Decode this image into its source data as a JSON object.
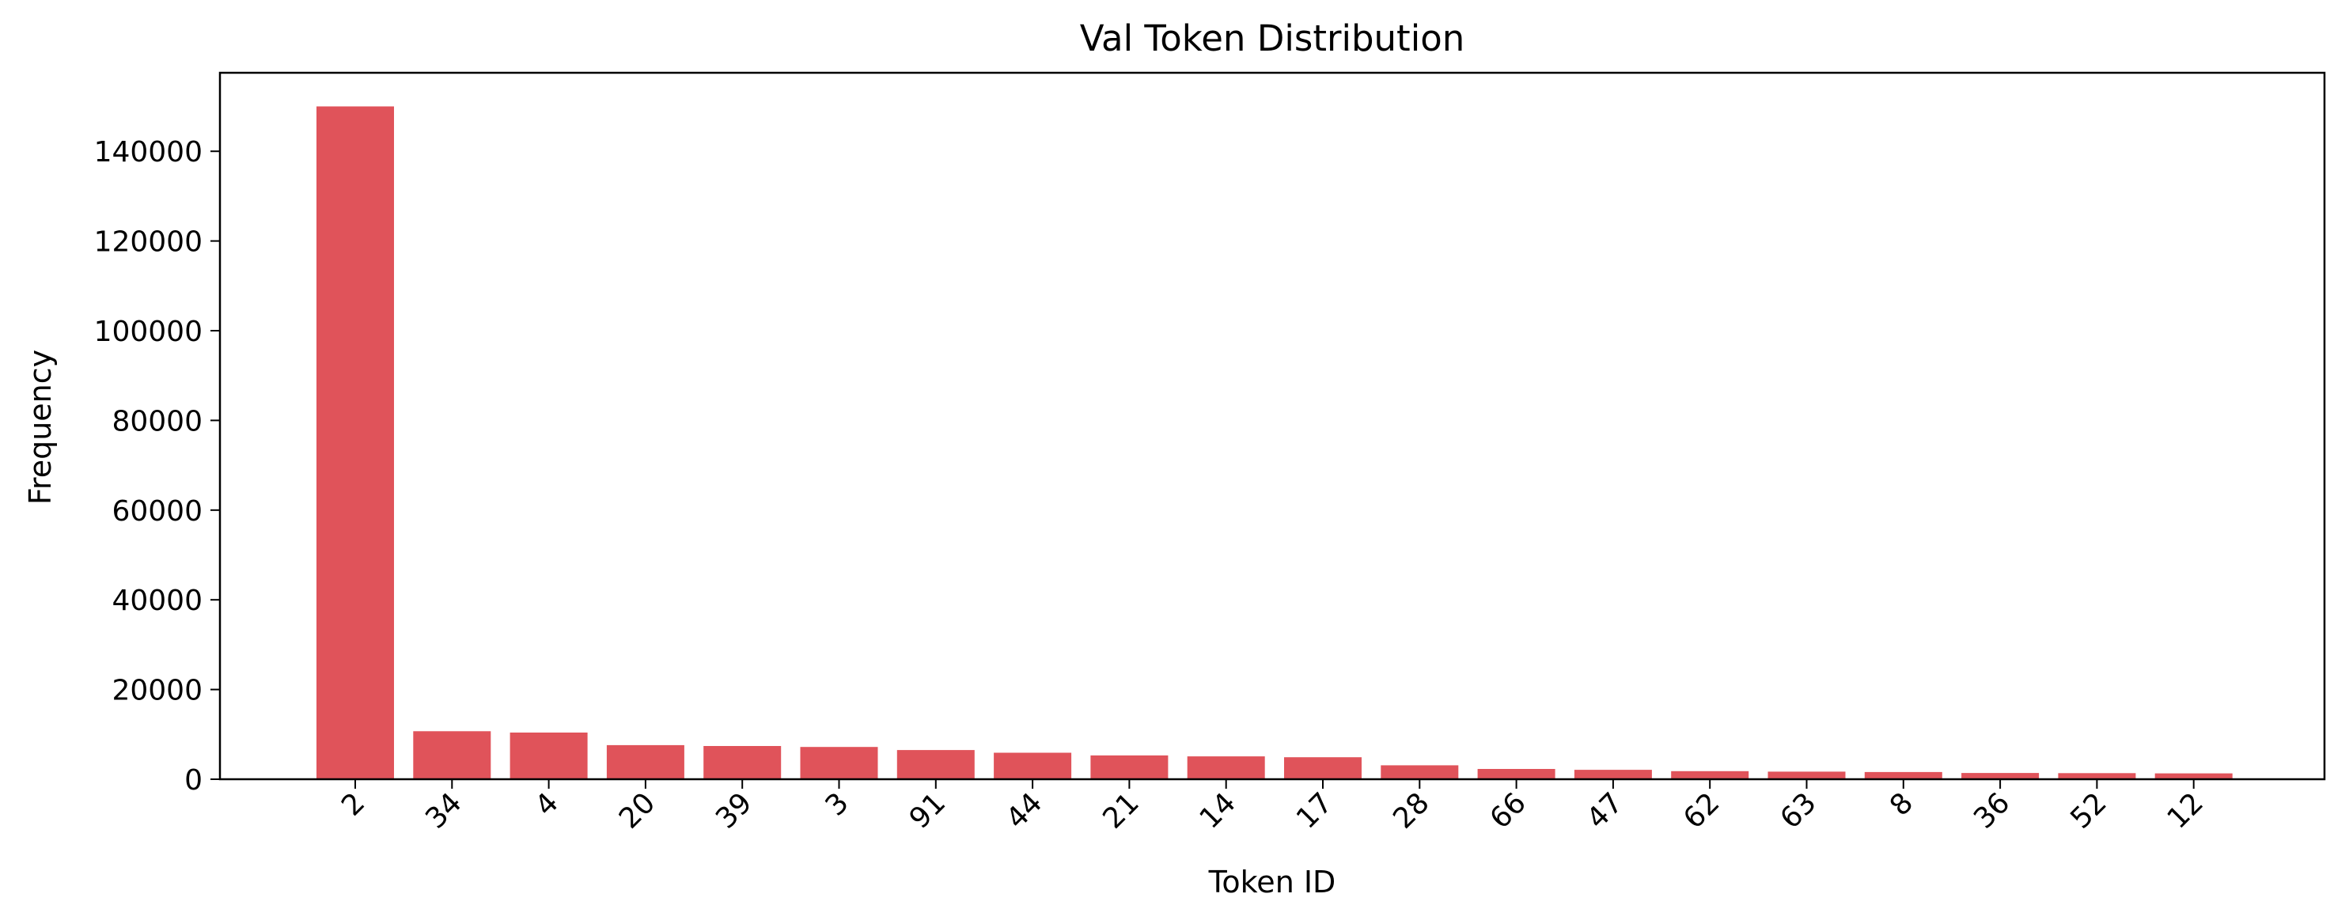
{
  "chart_data": {
    "type": "bar",
    "title": "Val Token Distribution",
    "xlabel": "Token ID",
    "ylabel": "Frequency",
    "categories": [
      "2",
      "34",
      "4",
      "20",
      "39",
      "3",
      "91",
      "44",
      "21",
      "14",
      "17",
      "28",
      "66",
      "47",
      "62",
      "63",
      "8",
      "36",
      "52",
      "12"
    ],
    "values": [
      150000,
      10700,
      10400,
      7600,
      7400,
      7200,
      6500,
      5900,
      5300,
      5100,
      4900,
      3100,
      2300,
      2100,
      1800,
      1700,
      1600,
      1400,
      1350,
      1300
    ],
    "ylim": [
      0,
      157500
    ],
    "yticks": [
      0,
      20000,
      40000,
      60000,
      80000,
      100000,
      120000,
      140000
    ],
    "ytick_labels": [
      "0",
      "20000",
      "40000",
      "60000",
      "80000",
      "100000",
      "120000",
      "140000"
    ],
    "grid": false,
    "legend": "none",
    "bar_color": "#e0535a",
    "tick_label_rotation_deg": 45
  }
}
